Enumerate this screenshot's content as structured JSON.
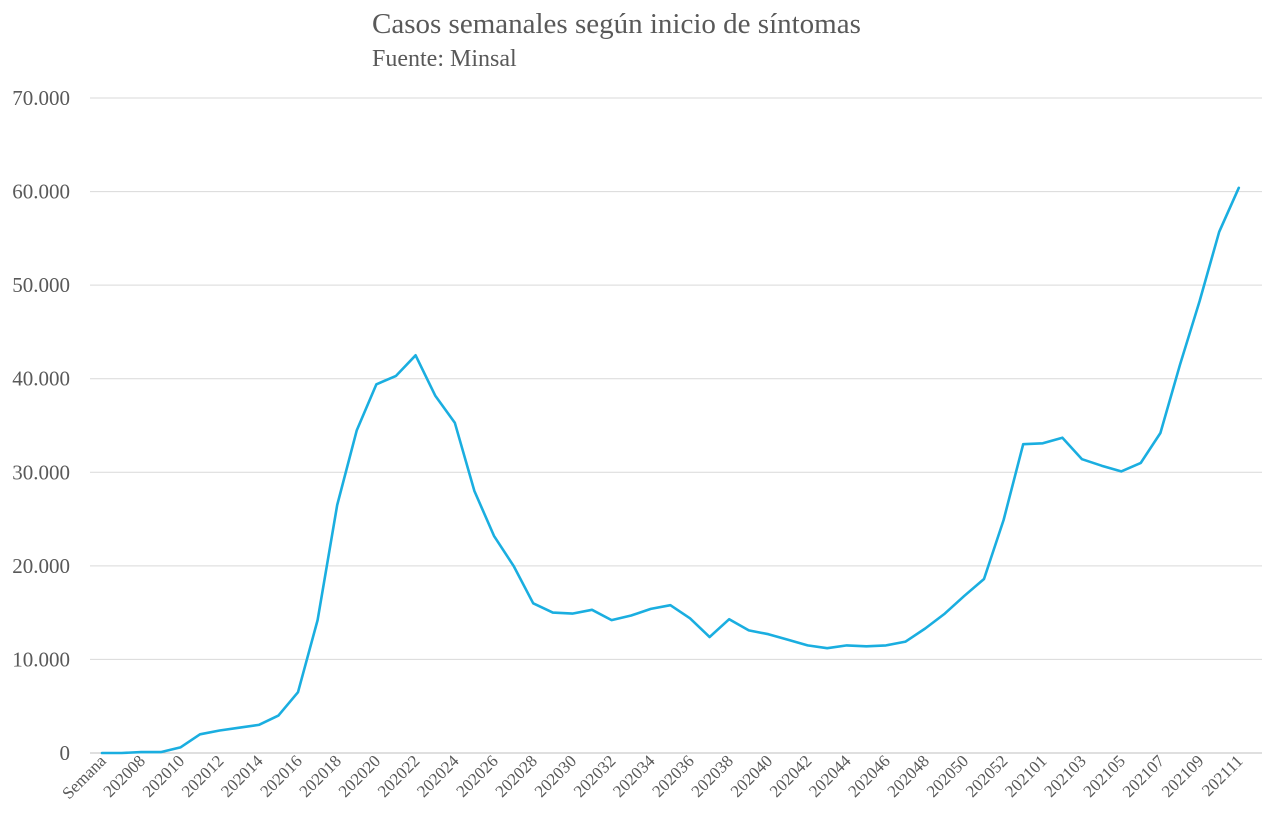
{
  "chart_data": {
    "type": "line",
    "title": "Casos semanales según inicio de síntomas",
    "subtitle": "Fuente: Minsal",
    "xlabel": "",
    "ylabel": "",
    "ylim": [
      0,
      70000
    ],
    "yticks": [
      "0",
      "10.000",
      "20.000",
      "30.000",
      "40.000",
      "50.000",
      "60.000",
      "70.000"
    ],
    "grid": true,
    "legend": "none",
    "line_color": "#1aaee0",
    "grid_color": "#d9d9d9",
    "x_tick_labels": [
      "Semana",
      "202008",
      "202010",
      "202012",
      "202014",
      "202016",
      "202018",
      "202020",
      "202022",
      "202024",
      "202026",
      "202028",
      "202030",
      "202032",
      "202034",
      "202036",
      "202038",
      "202040",
      "202042",
      "202044",
      "202046",
      "202048",
      "202050",
      "202052",
      "202101",
      "202103",
      "202105",
      "202107",
      "202109",
      "202111"
    ],
    "x": [
      "Semana",
      "202007",
      "202008",
      "202009",
      "202010",
      "202011",
      "202012",
      "202013",
      "202014",
      "202015",
      "202016",
      "202017",
      "202018",
      "202019",
      "202020",
      "202021",
      "202022",
      "202023",
      "202024",
      "202025",
      "202026",
      "202027",
      "202028",
      "202029",
      "202030",
      "202031",
      "202032",
      "202033",
      "202034",
      "202035",
      "202036",
      "202037",
      "202038",
      "202039",
      "202040",
      "202041",
      "202042",
      "202043",
      "202044",
      "202045",
      "202046",
      "202047",
      "202048",
      "202049",
      "202050",
      "202051",
      "202052",
      "202053",
      "202101",
      "202102",
      "202103",
      "202104",
      "202105",
      "202106",
      "202107",
      "202108",
      "202109",
      "202110",
      "202111"
    ],
    "series": [
      {
        "values": [
          0,
          0,
          100,
          100,
          600,
          2000,
          2400,
          2700,
          3000,
          4000,
          6500,
          14200,
          26500,
          34500,
          39400,
          40300,
          42500,
          38200,
          35300,
          28000,
          23200,
          20000,
          16000,
          15000,
          14900,
          15300,
          14200,
          14700,
          15400,
          15800,
          14400,
          12400,
          14300,
          13100,
          12700,
          12100,
          11500,
          11200,
          11500,
          11400,
          11500,
          11900,
          13300,
          14900,
          16800,
          18600,
          24900,
          33000,
          33100,
          33700,
          31400,
          30700,
          30100,
          31000,
          34200,
          41500,
          48300,
          55700,
          60400
        ]
      }
    ]
  }
}
